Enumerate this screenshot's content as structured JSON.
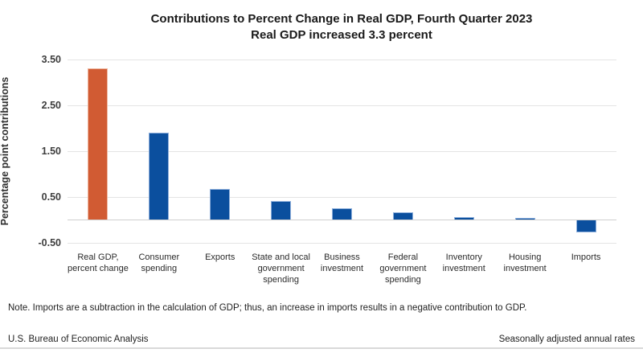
{
  "title": {
    "line1": "Contributions to Percent Change in Real GDP, Fourth Quarter 2023",
    "line2": "Real GDP increased 3.3 percent"
  },
  "chart_data": {
    "type": "bar",
    "title": "Contributions to Percent Change in Real GDP, Fourth Quarter 2023",
    "subtitle": "Real GDP increased 3.3 percent",
    "xlabel": "",
    "ylabel": "Percentage point contributions",
    "ylim": [
      -0.5,
      3.5
    ],
    "grid": true,
    "legend_position": "none",
    "yticks": [
      {
        "value": 3.5,
        "label": "3.50"
      },
      {
        "value": 2.5,
        "label": "2.50"
      },
      {
        "value": 1.5,
        "label": "1.50"
      },
      {
        "value": 0.5,
        "label": "0.50"
      },
      {
        "value": 0,
        "label": ""
      },
      {
        "value": -0.5,
        "label": "-0.50"
      }
    ],
    "categories": [
      "Real GDP, percent change",
      "Consumer spending",
      "Exports",
      "State and local government spending",
      "Business investment",
      "Federal government spending",
      "Inventory investment",
      "Housing investment",
      "Imports"
    ],
    "values": [
      3.3,
      1.91,
      0.68,
      0.41,
      0.26,
      0.17,
      0.07,
      0.04,
      -0.27
    ],
    "bar_colors": [
      "#d15b33",
      "#0b4f9e",
      "#0b4f9e",
      "#0b4f9e",
      "#0b4f9e",
      "#0b4f9e",
      "#0b4f9e",
      "#0b4f9e",
      "#0b4f9e"
    ],
    "highlight_color": "#d15b33",
    "default_color": "#0b4f9e"
  },
  "note": "Note. Imports are a subtraction in the calculation of GDP; thus, an increase in imports results in a negative contribution to GDP.",
  "footer": {
    "left": "U.S. Bureau of Economic Analysis",
    "right": "Seasonally adjusted annual rates"
  }
}
